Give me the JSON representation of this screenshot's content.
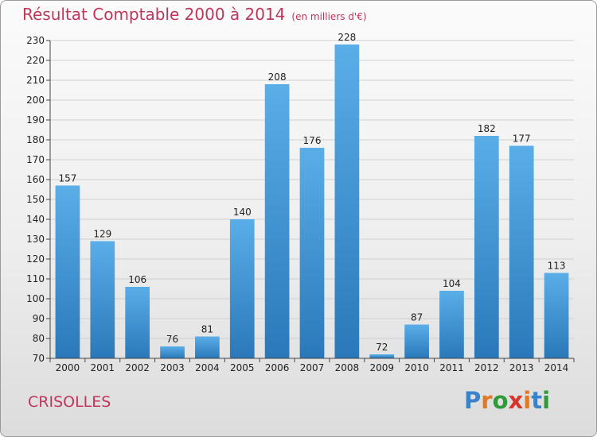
{
  "header": {
    "title": "Résultat Comptable 2000 à 2014",
    "unit": "(en milliers d'€)"
  },
  "footer": {
    "commune": "CRISOLLES",
    "brand": "Proxiti"
  },
  "colors": {
    "title": "#c0365b",
    "bar_top": "#5aaee8",
    "bar_bottom": "#2a78b9",
    "brand": [
      "#3b83c8",
      "#e07a27",
      "#2e9a3a",
      "#d8362d",
      "#e07a27",
      "#3b83c8",
      "#2e9a3a"
    ]
  },
  "chart_data": {
    "type": "bar",
    "title": "Résultat Comptable 2000 à 2014",
    "subtitle": "(en milliers d'€)",
    "xlabel": "",
    "ylabel": "",
    "categories": [
      "2000",
      "2001",
      "2002",
      "2003",
      "2004",
      "2005",
      "2006",
      "2007",
      "2008",
      "2009",
      "2010",
      "2011",
      "2012",
      "2013",
      "2014"
    ],
    "values": [
      157,
      129,
      106,
      76,
      81,
      140,
      208,
      176,
      228,
      72,
      87,
      104,
      182,
      177,
      113
    ],
    "ylim": [
      70,
      230
    ],
    "yticks": [
      70,
      80,
      90,
      100,
      110,
      120,
      130,
      140,
      150,
      160,
      170,
      180,
      190,
      200,
      210,
      220,
      230
    ],
    "grid": true,
    "data_labels": true
  }
}
